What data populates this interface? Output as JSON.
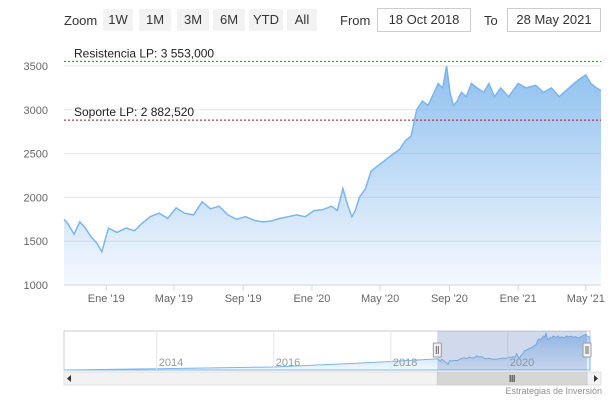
{
  "toolbar": {
    "zoom_label": "Zoom",
    "range_buttons": [
      "1W",
      "1M",
      "3M",
      "6M",
      "YTD",
      "All"
    ],
    "from_label": "From",
    "from_value": "18 Oct 2018",
    "to_label": "To",
    "to_value": "28 May 2021"
  },
  "chart_data": {
    "type": "area",
    "title": "",
    "xlabel": "",
    "ylabel": "",
    "ylim": [
      1000,
      3500
    ],
    "yticks": [
      "1000",
      "1500",
      "2000",
      "2500",
      "3000",
      "3500"
    ],
    "xticks": [
      "Ene '19",
      "May '19",
      "Sep '19",
      "Ene '20",
      "May '20",
      "Sep '20",
      "Ene '21",
      "May '21"
    ],
    "grid": true,
    "series": [
      {
        "color": "#7cb5ec",
        "x": [
          "2018-10-18",
          "2018-10-25",
          "2018-11-05",
          "2018-11-15",
          "2018-11-25",
          "2018-12-05",
          "2018-12-15",
          "2018-12-24",
          "2019-01-05",
          "2019-01-20",
          "2019-02-05",
          "2019-02-20",
          "2019-03-05",
          "2019-03-20",
          "2019-04-05",
          "2019-04-20",
          "2019-05-05",
          "2019-05-20",
          "2019-06-05",
          "2019-06-20",
          "2019-07-05",
          "2019-07-20",
          "2019-08-05",
          "2019-08-20",
          "2019-09-05",
          "2019-09-20",
          "2019-10-05",
          "2019-10-20",
          "2019-11-05",
          "2019-11-20",
          "2019-12-05",
          "2019-12-20",
          "2020-01-05",
          "2020-01-20",
          "2020-02-05",
          "2020-02-15",
          "2020-02-25",
          "2020-03-05",
          "2020-03-12",
          "2020-03-18",
          "2020-03-25",
          "2020-04-05",
          "2020-04-15",
          "2020-04-25",
          "2020-05-05",
          "2020-05-15",
          "2020-05-25",
          "2020-06-05",
          "2020-06-15",
          "2020-06-25",
          "2020-07-05",
          "2020-07-15",
          "2020-07-25",
          "2020-08-05",
          "2020-08-12",
          "2020-08-20",
          "2020-08-27",
          "2020-09-02",
          "2020-09-08",
          "2020-09-15",
          "2020-09-22",
          "2020-10-01",
          "2020-10-10",
          "2020-10-20",
          "2020-11-01",
          "2020-11-10",
          "2020-11-20",
          "2020-12-01",
          "2020-12-15",
          "2021-01-01",
          "2021-01-15",
          "2021-02-01",
          "2021-02-15",
          "2021-03-01",
          "2021-03-15",
          "2021-04-01",
          "2021-04-10",
          "2021-04-20",
          "2021-05-01",
          "2021-05-10",
          "2021-05-20",
          "2021-05-28"
        ],
        "y": [
          1750,
          1700,
          1580,
          1720,
          1650,
          1550,
          1480,
          1380,
          1650,
          1600,
          1650,
          1620,
          1700,
          1780,
          1820,
          1760,
          1880,
          1820,
          1800,
          1950,
          1870,
          1900,
          1800,
          1750,
          1780,
          1740,
          1720,
          1730,
          1760,
          1780,
          1800,
          1780,
          1850,
          1860,
          1900,
          1850,
          2100,
          1900,
          1780,
          1850,
          2000,
          2100,
          2300,
          2350,
          2400,
          2450,
          2500,
          2550,
          2650,
          2700,
          3000,
          3100,
          3050,
          3200,
          3300,
          3250,
          3500,
          3200,
          3050,
          3100,
          3200,
          3150,
          3300,
          3250,
          3200,
          3300,
          3150,
          3250,
          3150,
          3300,
          3250,
          3280,
          3200,
          3250,
          3150,
          3250,
          3300,
          3350,
          3400,
          3300,
          3250,
          3220
        ]
      }
    ],
    "plot_lines": [
      {
        "label": "Resistencia LP: 3 553,000",
        "value": 3553,
        "color": "#2e7d32"
      },
      {
        "label": "Soporte LP: 2 882,520",
        "value": 2882.52,
        "color": "#8b1a1a"
      }
    ],
    "navigator": {
      "xticks": [
        "2014",
        "2016",
        "2018",
        "2020"
      ]
    }
  },
  "credit": "Estrategias de Inversión"
}
